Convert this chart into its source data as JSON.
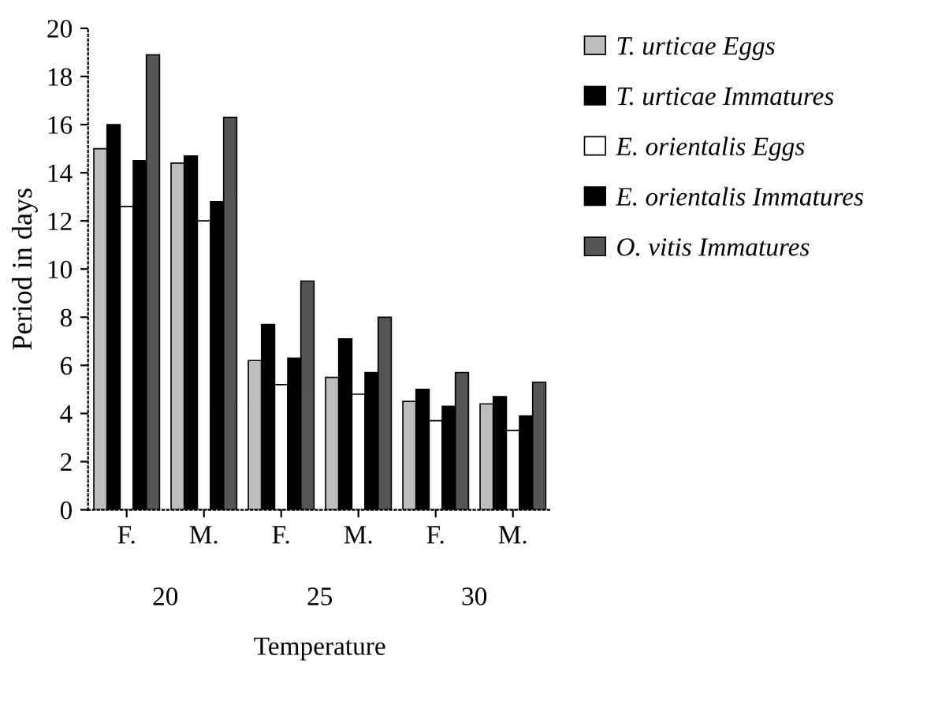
{
  "chart_data": {
    "type": "bar",
    "xlabel": "Temperature",
    "ylabel": "Period in days",
    "categories": [
      "F.",
      "M.",
      "F.",
      "M.",
      "F.",
      "M."
    ],
    "annotations": [
      "20",
      "25",
      "30"
    ],
    "series": [
      {
        "name": "T. urticae Eggs",
        "color": "#bdbdbd",
        "values": [
          15.0,
          14.4,
          6.2,
          5.5,
          4.5,
          4.4
        ]
      },
      {
        "name": "T. urticae Immatures",
        "color": "#000000",
        "values": [
          16.0,
          14.7,
          7.7,
          7.1,
          5.0,
          4.7
        ]
      },
      {
        "name": "E. orientalis Eggs",
        "color": "#ffffff",
        "values": [
          12.6,
          12.0,
          5.2,
          4.8,
          3.7,
          3.3
        ]
      },
      {
        "name": "E. orientalis Immatures",
        "color": "#000000",
        "values": [
          14.5,
          12.8,
          6.3,
          5.7,
          4.3,
          3.9
        ]
      },
      {
        "name": "O. vitis Immatures",
        "color": "#555555",
        "values": [
          18.9,
          16.3,
          9.5,
          8.0,
          5.7,
          5.3
        ]
      }
    ],
    "ylim": [
      0,
      20
    ],
    "yticks": [
      0,
      2,
      4,
      6,
      8,
      10,
      12,
      14,
      16,
      18,
      20
    ],
    "grid": false,
    "legend": "right"
  }
}
